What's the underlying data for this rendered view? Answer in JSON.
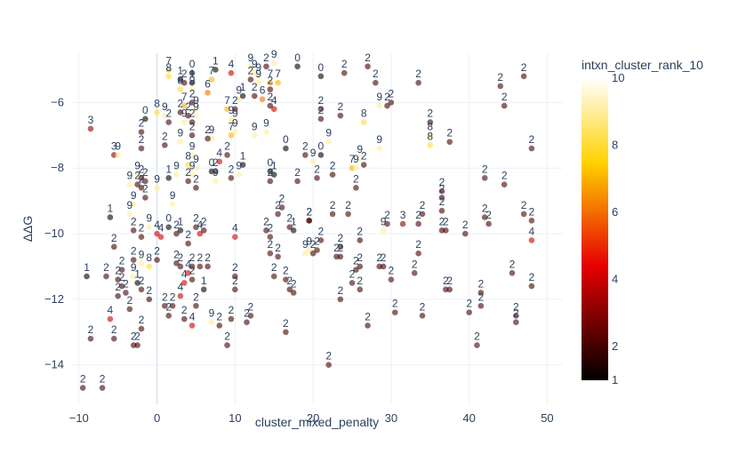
{
  "chart_data": {
    "type": "scatter",
    "title": "",
    "xlabel": "cluster_mixed_penalty",
    "ylabel": "ΔΔG",
    "xlim": [
      -11,
      52
    ],
    "ylim": [
      -15.2,
      -4.5
    ],
    "x_ticks": [
      -10,
      0,
      10,
      20,
      30,
      40,
      50
    ],
    "y_ticks": [
      -14,
      -12,
      -10,
      -8,
      -6
    ],
    "grid": true,
    "colorbar": {
      "title": "intxn_cluster_rank_10",
      "min": 1,
      "max": 10,
      "ticks": [
        1,
        2,
        4,
        6,
        8,
        10
      ],
      "colorscale": [
        "#000000",
        "#e60000",
        "#ffd200",
        "#ffffff"
      ]
    },
    "points": [
      {
        "x": -9.5,
        "y": -14.7,
        "rank": 2
      },
      {
        "x": -7,
        "y": -14.7,
        "rank": 2
      },
      {
        "x": -8.5,
        "y": -13.2,
        "rank": 2
      },
      {
        "x": -6,
        "y": -12.6,
        "rank": 4
      },
      {
        "x": -3.5,
        "y": -12.3,
        "rank": 2
      },
      {
        "x": -5.5,
        "y": -13.2,
        "rank": 2
      },
      {
        "x": -3,
        "y": -13.4,
        "rank": 2
      },
      {
        "x": -2.5,
        "y": -13.4,
        "rank": 2
      },
      {
        "x": -2,
        "y": -12.9,
        "rank": 2
      },
      {
        "x": -9,
        "y": -11.3,
        "rank": 1
      },
      {
        "x": -6.5,
        "y": -11.3,
        "rank": 2
      },
      {
        "x": -5,
        "y": -11.4,
        "rank": 2
      },
      {
        "x": -4.5,
        "y": -11.1,
        "rank": 2
      },
      {
        "x": -3,
        "y": -11.3,
        "rank": 9
      },
      {
        "x": -2.5,
        "y": -11.5,
        "rank": 1
      },
      {
        "x": -4,
        "y": -11.8,
        "rank": 2
      },
      {
        "x": -1,
        "y": -12.0,
        "rank": 2
      },
      {
        "x": -2,
        "y": -11.7,
        "rank": 2
      },
      {
        "x": -5,
        "y": -11.9,
        "rank": 2
      },
      {
        "x": -4.5,
        "y": -11.6,
        "rank": 2
      },
      {
        "x": -5.5,
        "y": -10.4,
        "rank": 2
      },
      {
        "x": -3,
        "y": -10.8,
        "rank": 2
      },
      {
        "x": -2,
        "y": -10.9,
        "rank": 9
      },
      {
        "x": -1,
        "y": -11.0,
        "rank": 8
      },
      {
        "x": 0,
        "y": -10.8,
        "rank": 2
      },
      {
        "x": -6,
        "y": -9.5,
        "rank": 1
      },
      {
        "x": -3,
        "y": -9.9,
        "rank": 2
      },
      {
        "x": -2,
        "y": -10.1,
        "rank": 2
      },
      {
        "x": -1,
        "y": -9.8,
        "rank": 9
      },
      {
        "x": 0,
        "y": -10.0,
        "rank": 4
      },
      {
        "x": 0.5,
        "y": -10.1,
        "rank": 4
      },
      {
        "x": 1.5,
        "y": -9.8,
        "rank": 0
      },
      {
        "x": 2.5,
        "y": -10.0,
        "rank": 2
      },
      {
        "x": 3,
        "y": -9.9,
        "rank": 1
      },
      {
        "x": 4,
        "y": -10.3,
        "rank": 2
      },
      {
        "x": 5,
        "y": -9.8,
        "rank": 2
      },
      {
        "x": 5.5,
        "y": -10.0,
        "rank": 4
      },
      {
        "x": 6,
        "y": -9.9,
        "rank": 2
      },
      {
        "x": 2.5,
        "y": -10.9,
        "rank": 2
      },
      {
        "x": 3,
        "y": -11.0,
        "rank": 2
      },
      {
        "x": 4,
        "y": -11.2,
        "rank": 4
      },
      {
        "x": 4.5,
        "y": -11.0,
        "rank": 2
      },
      {
        "x": 5.5,
        "y": -11.0,
        "rank": 2
      },
      {
        "x": 6.5,
        "y": -11.0,
        "rank": 2
      },
      {
        "x": 4.5,
        "y": -11.4,
        "rank": 2
      },
      {
        "x": 3.5,
        "y": -11.5,
        "rank": 4
      },
      {
        "x": 3,
        "y": -11.9,
        "rank": 4
      },
      {
        "x": 6,
        "y": -11.7,
        "rank": 1
      },
      {
        "x": 1,
        "y": -12.2,
        "rank": 2
      },
      {
        "x": 2,
        "y": -12.2,
        "rank": 2
      },
      {
        "x": 1.5,
        "y": -12.5,
        "rank": 2
      },
      {
        "x": 4.5,
        "y": -12.8,
        "rank": 4
      },
      {
        "x": 3.5,
        "y": -12.6,
        "rank": 2
      },
      {
        "x": 5,
        "y": -12.2,
        "rank": 2
      },
      {
        "x": 7,
        "y": -12.7,
        "rank": 9
      },
      {
        "x": 8,
        "y": -12.8,
        "rank": 2
      },
      {
        "x": 9.5,
        "y": -12.6,
        "rank": 2
      },
      {
        "x": -3.5,
        "y": -9.4,
        "rank": 9
      },
      {
        "x": -3,
        "y": -9.1,
        "rank": 9
      },
      {
        "x": -2,
        "y": -8.6,
        "rank": 2
      },
      {
        "x": -2.5,
        "y": -8.5,
        "rank": 2
      },
      {
        "x": -1.5,
        "y": -8.4,
        "rank": 2
      },
      {
        "x": -1.5,
        "y": -8.9,
        "rank": 2
      },
      {
        "x": -2,
        "y": -8.3,
        "rank": 2
      },
      {
        "x": -2.5,
        "y": -8.2,
        "rank": 9
      },
      {
        "x": -3.5,
        "y": -8.5,
        "rank": 9
      },
      {
        "x": 0,
        "y": -8.6,
        "rank": 9
      },
      {
        "x": 1.5,
        "y": -8.3,
        "rank": 1
      },
      {
        "x": 2.5,
        "y": -8.2,
        "rank": 9
      },
      {
        "x": 2,
        "y": -9.1,
        "rank": 9
      },
      {
        "x": 4,
        "y": -8.4,
        "rank": 2
      },
      {
        "x": 4.5,
        "y": -8.2,
        "rank": 9
      },
      {
        "x": 5,
        "y": -8.6,
        "rank": 2
      },
      {
        "x": 4,
        "y": -7.9,
        "rank": 8
      },
      {
        "x": 4.5,
        "y": -7.6,
        "rank": 9
      },
      {
        "x": 5,
        "y": -8.0,
        "rank": 9
      },
      {
        "x": 7,
        "y": -8.1,
        "rank": 0
      },
      {
        "x": 7.5,
        "y": -8.1,
        "rank": 2
      },
      {
        "x": 8,
        "y": -7.8,
        "rank": 4
      },
      {
        "x": 9,
        "y": -7.6,
        "rank": 2
      },
      {
        "x": 7.5,
        "y": -8.4,
        "rank": 9
      },
      {
        "x": 9.5,
        "y": -8.3,
        "rank": 2
      },
      {
        "x": 10.5,
        "y": -8.2,
        "rank": 9
      },
      {
        "x": 11,
        "y": -7.9,
        "rank": 1
      },
      {
        "x": -5.5,
        "y": -7.6,
        "rank": 3
      },
      {
        "x": -5,
        "y": -7.6,
        "rank": 9
      },
      {
        "x": -2,
        "y": -7.4,
        "rank": 2
      },
      {
        "x": 1,
        "y": -7.3,
        "rank": 2
      },
      {
        "x": 3,
        "y": -7.2,
        "rank": 9
      },
      {
        "x": 4.5,
        "y": -7.0,
        "rank": 2
      },
      {
        "x": 7,
        "y": -7.1,
        "rank": 9
      },
      {
        "x": 6.5,
        "y": -7.1,
        "rank": 2
      },
      {
        "x": -8.5,
        "y": -6.8,
        "rank": 3
      },
      {
        "x": -1.5,
        "y": -6.5,
        "rank": 0
      },
      {
        "x": -2,
        "y": -6.9,
        "rank": 2
      },
      {
        "x": 0,
        "y": -6.3,
        "rank": 8
      },
      {
        "x": 1,
        "y": -6.4,
        "rank": 9
      },
      {
        "x": 1.5,
        "y": -6.6,
        "rank": 2
      },
      {
        "x": 3,
        "y": -6.3,
        "rank": 2
      },
      {
        "x": 3.5,
        "y": -6.1,
        "rank": 7
      },
      {
        "x": 4,
        "y": -6.4,
        "rank": 2
      },
      {
        "x": 4.5,
        "y": -6.0,
        "rank": 2
      },
      {
        "x": 5,
        "y": -6.2,
        "rank": 9
      },
      {
        "x": 5,
        "y": -6.4,
        "rank": 9
      },
      {
        "x": 3.5,
        "y": -6.6,
        "rank": 9
      },
      {
        "x": 4.5,
        "y": -6.6,
        "rank": 2
      },
      {
        "x": 1.5,
        "y": -5.0,
        "rank": 7
      },
      {
        "x": 1.5,
        "y": -5.2,
        "rank": 8
      },
      {
        "x": 3,
        "y": -5.3,
        "rank": 1
      },
      {
        "x": 3.5,
        "y": -5.4,
        "rank": 2
      },
      {
        "x": 3,
        "y": -5.6,
        "rank": 8
      },
      {
        "x": 4.5,
        "y": -5.1,
        "rank": 0
      },
      {
        "x": 4.5,
        "y": -5.4,
        "rank": 1
      },
      {
        "x": 4.5,
        "y": -5.6,
        "rank": 9
      },
      {
        "x": 6.5,
        "y": -5.7,
        "rank": 6
      },
      {
        "x": 7,
        "y": -5.3,
        "rank": 7
      },
      {
        "x": 7.5,
        "y": -5.0,
        "rank": 1
      },
      {
        "x": 9,
        "y": -6.2,
        "rank": 7
      },
      {
        "x": 9.5,
        "y": -6.5,
        "rank": 9
      },
      {
        "x": 10,
        "y": -6.6,
        "rank": 9
      },
      {
        "x": 10,
        "y": -6.9,
        "rank": 9
      },
      {
        "x": 9.5,
        "y": -7.0,
        "rank": 7
      },
      {
        "x": 10.5,
        "y": -5.9,
        "rank": 9
      },
      {
        "x": 11,
        "y": -5.8,
        "rank": 1
      },
      {
        "x": 10,
        "y": -6.2,
        "rank": 2
      },
      {
        "x": 9.5,
        "y": -5.1,
        "rank": 4
      },
      {
        "x": 12,
        "y": -4.9,
        "rank": 9
      },
      {
        "x": 12.5,
        "y": -5.1,
        "rank": 9
      },
      {
        "x": 12,
        "y": -5.3,
        "rank": 2
      },
      {
        "x": 13,
        "y": -5.2,
        "rank": 9
      },
      {
        "x": 14,
        "y": -4.9,
        "rank": 2
      },
      {
        "x": 15,
        "y": -4.8,
        "rank": 9
      },
      {
        "x": 14.5,
        "y": -5.4,
        "rank": 7
      },
      {
        "x": 15.5,
        "y": -5.4,
        "rank": 7
      },
      {
        "x": 18,
        "y": -4.9,
        "rank": 0
      },
      {
        "x": 13,
        "y": -5.4,
        "rank": 9
      },
      {
        "x": 12.5,
        "y": -5.8,
        "rank": 2
      },
      {
        "x": 13.5,
        "y": -5.9,
        "rank": 6
      },
      {
        "x": 14.5,
        "y": -5.6,
        "rank": 2
      },
      {
        "x": 15,
        "y": -6.2,
        "rank": 4
      },
      {
        "x": 14.5,
        "y": -6.1,
        "rank": 2
      },
      {
        "x": 14,
        "y": -6.9,
        "rank": 9
      },
      {
        "x": 12.5,
        "y": -7.0,
        "rank": 9
      },
      {
        "x": 16.5,
        "y": -7.4,
        "rank": 0
      },
      {
        "x": 19,
        "y": -7.6,
        "rank": 2
      },
      {
        "x": 20,
        "y": -7.8,
        "rank": 9
      },
      {
        "x": 21,
        "y": -7.6,
        "rank": 0
      },
      {
        "x": 22,
        "y": -7.2,
        "rank": 9
      },
      {
        "x": 14.5,
        "y": -8.1,
        "rank": 0
      },
      {
        "x": 15,
        "y": -8.2,
        "rank": 1
      },
      {
        "x": 14.5,
        "y": -8.4,
        "rank": 2
      },
      {
        "x": 18,
        "y": -8.4,
        "rank": 2
      },
      {
        "x": 20.5,
        "y": -8.3,
        "rank": 2
      },
      {
        "x": 22.5,
        "y": -8.2,
        "rank": 2
      },
      {
        "x": 25,
        "y": -8.0,
        "rank": 7
      },
      {
        "x": 25.5,
        "y": -8.0,
        "rank": 9
      },
      {
        "x": 26,
        "y": -7.7,
        "rank": 9
      },
      {
        "x": 26.5,
        "y": -7.9,
        "rank": 2
      },
      {
        "x": 25.5,
        "y": -8.6,
        "rank": 2
      },
      {
        "x": 21,
        "y": -5.2,
        "rank": 0
      },
      {
        "x": 24,
        "y": -5.1,
        "rank": 2
      },
      {
        "x": 27,
        "y": -4.9,
        "rank": 2
      },
      {
        "x": 28,
        "y": -5.4,
        "rank": 2
      },
      {
        "x": 21,
        "y": -6.2,
        "rank": 2
      },
      {
        "x": 21,
        "y": -6.5,
        "rank": 2
      },
      {
        "x": 23.5,
        "y": -6.4,
        "rank": 2
      },
      {
        "x": 26.5,
        "y": -6.6,
        "rank": 8
      },
      {
        "x": 28.5,
        "y": -6.1,
        "rank": 9
      },
      {
        "x": 29.5,
        "y": -6.1,
        "rank": 2
      },
      {
        "x": 30,
        "y": -6.0,
        "rank": 2
      },
      {
        "x": 28.5,
        "y": -7.4,
        "rank": 9
      },
      {
        "x": 33.5,
        "y": -5.4,
        "rank": 2
      },
      {
        "x": 35,
        "y": -6.6,
        "rank": 2
      },
      {
        "x": 35,
        "y": -7.0,
        "rank": 8
      },
      {
        "x": 35,
        "y": -7.3,
        "rank": 8
      },
      {
        "x": 37.5,
        "y": -7.2,
        "rank": 2
      },
      {
        "x": 44,
        "y": -5.5,
        "rank": 2
      },
      {
        "x": 44.5,
        "y": -6.1,
        "rank": 2
      },
      {
        "x": 47,
        "y": -5.2,
        "rank": 2
      },
      {
        "x": 48,
        "y": -7.4,
        "rank": 2
      },
      {
        "x": 36.5,
        "y": -8.7,
        "rank": 2
      },
      {
        "x": 36.5,
        "y": -8.9,
        "rank": 2
      },
      {
        "x": 42,
        "y": -8.3,
        "rank": 2
      },
      {
        "x": 44.5,
        "y": -8.5,
        "rank": 2
      },
      {
        "x": 16,
        "y": -9.2,
        "rank": 2
      },
      {
        "x": 15.5,
        "y": -9.4,
        "rank": 2
      },
      {
        "x": 19.5,
        "y": -9.6,
        "rank": 2
      },
      {
        "x": 22.5,
        "y": -9.4,
        "rank": 2
      },
      {
        "x": 24.5,
        "y": -9.4,
        "rank": 2
      },
      {
        "x": 34,
        "y": -9.4,
        "rank": 2
      },
      {
        "x": 36.5,
        "y": -9.3,
        "rank": 2
      },
      {
        "x": 42,
        "y": -9.5,
        "rank": 2
      },
      {
        "x": 47,
        "y": -9.4,
        "rank": 2
      },
      {
        "x": 10,
        "y": -10.1,
        "rank": 4
      },
      {
        "x": 14,
        "y": -9.9,
        "rank": 2
      },
      {
        "x": 14.5,
        "y": -10.1,
        "rank": 2
      },
      {
        "x": 17,
        "y": -9.8,
        "rank": 2
      },
      {
        "x": 17.5,
        "y": -9.9,
        "rank": 1
      },
      {
        "x": 19.5,
        "y": -9.6,
        "rank": 2
      },
      {
        "x": 21,
        "y": -10.2,
        "rank": 2
      },
      {
        "x": 20.5,
        "y": -10.5,
        "rank": 2
      },
      {
        "x": 23.5,
        "y": -10.4,
        "rank": 2
      },
      {
        "x": 26,
        "y": -10.2,
        "rank": 2
      },
      {
        "x": 29,
        "y": -9.9,
        "rank": 9
      },
      {
        "x": 29.5,
        "y": -9.7,
        "rank": 2
      },
      {
        "x": 31.5,
        "y": -9.7,
        "rank": 3
      },
      {
        "x": 33.5,
        "y": -9.7,
        "rank": 2
      },
      {
        "x": 36.5,
        "y": -9.9,
        "rank": 2
      },
      {
        "x": 37,
        "y": -9.9,
        "rank": 2
      },
      {
        "x": 39.5,
        "y": -10.0,
        "rank": 2
      },
      {
        "x": 42.5,
        "y": -9.7,
        "rank": 2
      },
      {
        "x": 48,
        "y": -9.6,
        "rank": 2
      },
      {
        "x": 48,
        "y": -10.2,
        "rank": 4
      },
      {
        "x": 14.5,
        "y": -10.6,
        "rank": 2
      },
      {
        "x": 15.5,
        "y": -10.7,
        "rank": 2
      },
      {
        "x": 19,
        "y": -10.6,
        "rank": 9
      },
      {
        "x": 19.5,
        "y": -10.5,
        "rank": 9
      },
      {
        "x": 20,
        "y": -10.6,
        "rank": 2
      },
      {
        "x": 23,
        "y": -10.7,
        "rank": 2
      },
      {
        "x": 23.5,
        "y": -10.7,
        "rank": 2
      },
      {
        "x": 25.5,
        "y": -11.1,
        "rank": 2
      },
      {
        "x": 26,
        "y": -11.0,
        "rank": 2
      },
      {
        "x": 28.5,
        "y": -11.0,
        "rank": 2
      },
      {
        "x": 29,
        "y": -11.0,
        "rank": 2
      },
      {
        "x": 33.5,
        "y": -10.6,
        "rank": 2
      },
      {
        "x": 10,
        "y": -11.3,
        "rank": 2
      },
      {
        "x": 10,
        "y": -11.7,
        "rank": 2
      },
      {
        "x": 15,
        "y": -11.3,
        "rank": 2
      },
      {
        "x": 16.5,
        "y": -11.4,
        "rank": 2
      },
      {
        "x": 17,
        "y": -11.7,
        "rank": 2
      },
      {
        "x": 17.5,
        "y": -11.8,
        "rank": 2
      },
      {
        "x": 25,
        "y": -11.5,
        "rank": 2
      },
      {
        "x": 26,
        "y": -11.7,
        "rank": 2
      },
      {
        "x": 30,
        "y": -11.4,
        "rank": 2
      },
      {
        "x": 33,
        "y": -11.2,
        "rank": 2
      },
      {
        "x": 37,
        "y": -11.7,
        "rank": 2
      },
      {
        "x": 37.5,
        "y": -11.7,
        "rank": 2
      },
      {
        "x": 41.5,
        "y": -11.8,
        "rank": 2
      },
      {
        "x": 45.5,
        "y": -11.2,
        "rank": 2
      },
      {
        "x": 48,
        "y": -11.6,
        "rank": 2
      },
      {
        "x": 23.5,
        "y": -12.0,
        "rank": 2
      },
      {
        "x": 12,
        "y": -12.5,
        "rank": 2
      },
      {
        "x": 11.5,
        "y": -12.7,
        "rank": 2
      },
      {
        "x": 16.5,
        "y": -13.0,
        "rank": 2
      },
      {
        "x": 27,
        "y": -12.8,
        "rank": 2
      },
      {
        "x": 30.5,
        "y": -12.4,
        "rank": 2
      },
      {
        "x": 34,
        "y": -12.5,
        "rank": 2
      },
      {
        "x": 40,
        "y": -12.4,
        "rank": 2
      },
      {
        "x": 41.5,
        "y": -12.2,
        "rank": 2
      },
      {
        "x": 46,
        "y": -12.5,
        "rank": 2
      },
      {
        "x": 46,
        "y": -12.7,
        "rank": 2
      },
      {
        "x": 9,
        "y": -13.4,
        "rank": 2
      },
      {
        "x": 41,
        "y": -13.4,
        "rank": 2
      },
      {
        "x": 22,
        "y": -14.0,
        "rank": 2
      }
    ]
  }
}
